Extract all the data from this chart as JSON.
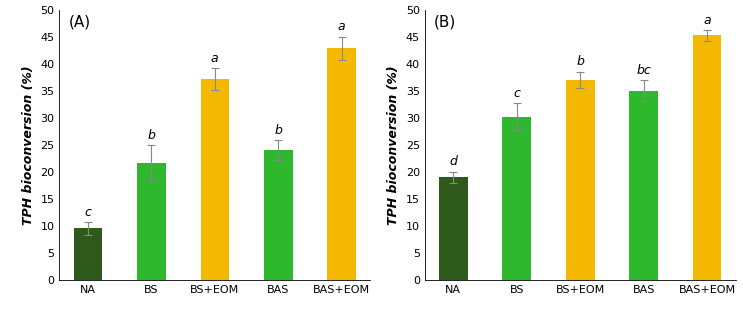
{
  "panel_A": {
    "label": "(A)",
    "categories": [
      "NA",
      "BS",
      "BS+EOM",
      "BAS",
      "BAS+EOM"
    ],
    "values": [
      9.5,
      21.7,
      37.2,
      24.0,
      42.8
    ],
    "errors": [
      1.2,
      3.2,
      2.0,
      1.8,
      2.2
    ],
    "colors": [
      "#2d5a1b",
      "#2db82d",
      "#f5b800",
      "#2db82d",
      "#f5b800"
    ],
    "significance": [
      "c",
      "b",
      "a",
      "b",
      "a"
    ],
    "ylabel": "TPH bioconversion (%)",
    "ylim": [
      0,
      50
    ],
    "yticks": [
      0,
      5,
      10,
      15,
      20,
      25,
      30,
      35,
      40,
      45,
      50
    ]
  },
  "panel_B": {
    "label": "(B)",
    "categories": [
      "NA",
      "BS",
      "BS+EOM",
      "BAS",
      "BAS+EOM"
    ],
    "values": [
      19.0,
      30.2,
      37.0,
      35.0,
      45.2
    ],
    "errors": [
      1.0,
      2.5,
      1.5,
      2.0,
      1.0
    ],
    "colors": [
      "#2d5a1b",
      "#2db82d",
      "#f5b800",
      "#2db82d",
      "#f5b800"
    ],
    "significance": [
      "d",
      "c",
      "b",
      "bc",
      "a"
    ],
    "ylabel": "TPH bioconversion (%)",
    "ylim": [
      0,
      50
    ],
    "yticks": [
      0,
      5,
      10,
      15,
      20,
      25,
      30,
      35,
      40,
      45,
      50
    ]
  },
  "bar_width": 0.45,
  "error_capsize": 3,
  "sig_fontsize": 9,
  "tick_fontsize": 8,
  "ylabel_fontsize": 9,
  "label_fontsize": 11
}
